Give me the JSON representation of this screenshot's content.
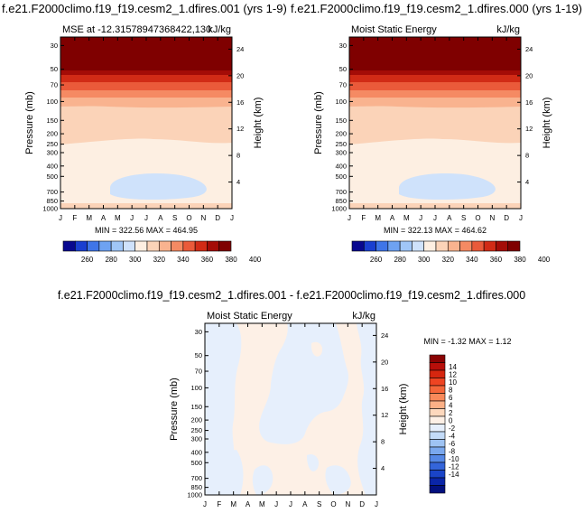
{
  "top_left_title": "f.e21.F2000climo.f19_f19.cesm2_1.dfires.001 (yrs 1-9)",
  "top_right_title": "f.e21.F2000climo.f19_f19.cesm2_1.dfires.000 (yrs 1-19)",
  "diff_title": "f.e21.F2000climo.f19_f19.cesm2_1.dfires.001 - f.e21.F2000climo.f19_f19.cesm2_1.dfires.000",
  "chart_data": [
    {
      "type": "heatmap",
      "panel": "top-left",
      "left_string": "MSE at -12.31578947368422,130",
      "right_string": "kJ/kg",
      "ylabel": "Pressure (mb)",
      "y2label": "Height (km)",
      "x_ticks": [
        "J",
        "F",
        "M",
        "A",
        "M",
        "J",
        "J",
        "A",
        "S",
        "O",
        "N",
        "D",
        "J"
      ],
      "pressure_ticks": [
        30,
        50,
        70,
        100,
        150,
        200,
        250,
        300,
        400,
        500,
        700,
        850,
        1000
      ],
      "height_ticks": [
        4,
        8,
        12,
        16,
        20,
        24
      ],
      "stats": "MIN = 322.56 MAX = 464.95",
      "min": 322.56,
      "max": 464.95,
      "log_y": true
    },
    {
      "type": "heatmap",
      "panel": "top-right",
      "left_string": "Moist Static Energy",
      "right_string": "kJ/kg",
      "ylabel": "Pressure (mb)",
      "y2label": "Height (km)",
      "x_ticks": [
        "J",
        "F",
        "M",
        "A",
        "M",
        "J",
        "J",
        "A",
        "S",
        "O",
        "N",
        "D",
        "J"
      ],
      "pressure_ticks": [
        30,
        50,
        70,
        100,
        150,
        200,
        250,
        300,
        400,
        500,
        700,
        850,
        1000
      ],
      "height_ticks": [
        4,
        8,
        12,
        16,
        20,
        24
      ],
      "stats": "MIN = 322.13 MAX = 464.62",
      "min": 322.13,
      "max": 464.62,
      "log_y": true
    },
    {
      "type": "heatmap",
      "panel": "difference",
      "left_string": "Moist Static Energy",
      "right_string": "kJ/kg",
      "ylabel": "Pressure (mb)",
      "y2label": "Height (km)",
      "x_ticks": [
        "J",
        "F",
        "M",
        "A",
        "M",
        "J",
        "J",
        "A",
        "S",
        "O",
        "N",
        "D",
        "J"
      ],
      "pressure_ticks": [
        30,
        50,
        70,
        100,
        150,
        200,
        250,
        300,
        400,
        500,
        700,
        850,
        1000
      ],
      "height_ticks": [
        4,
        8,
        12,
        16,
        20,
        24
      ],
      "stats": "MIN = -1.32 MAX =  1.12",
      "min": -1.32,
      "max": 1.12,
      "log_y": true
    }
  ],
  "colorbar_main": {
    "labels": [
      "260",
      "280",
      "300",
      "320",
      "340",
      "360",
      "380",
      "400"
    ],
    "colors": [
      "#08088f",
      "#1a3fd0",
      "#3f75e8",
      "#6ea2f2",
      "#a0c6f7",
      "#cfe2fb",
      "#fdefe2",
      "#fbd3b8",
      "#f9b38f",
      "#f58a63",
      "#ea5a3a",
      "#d12b16",
      "#a40c07",
      "#7f0000"
    ]
  },
  "colorbar_diff": {
    "labels": [
      "14",
      "12",
      "10",
      "8",
      "6",
      "4",
      "2",
      "0",
      "-2",
      "-4",
      "-6",
      "-8",
      "-10",
      "-12",
      "-14"
    ],
    "colors": [
      "#8a0303",
      "#b80f0a",
      "#d6260f",
      "#ee4422",
      "#f4663a",
      "#f8895a",
      "#fbb086",
      "#fdd8bd",
      "#fdf0e6",
      "#e6effc",
      "#c3dbf8",
      "#9ec3f3",
      "#7aa8ee",
      "#5588e6",
      "#3465da",
      "#1a44c8",
      "#0a25a8",
      "#02107e"
    ]
  }
}
